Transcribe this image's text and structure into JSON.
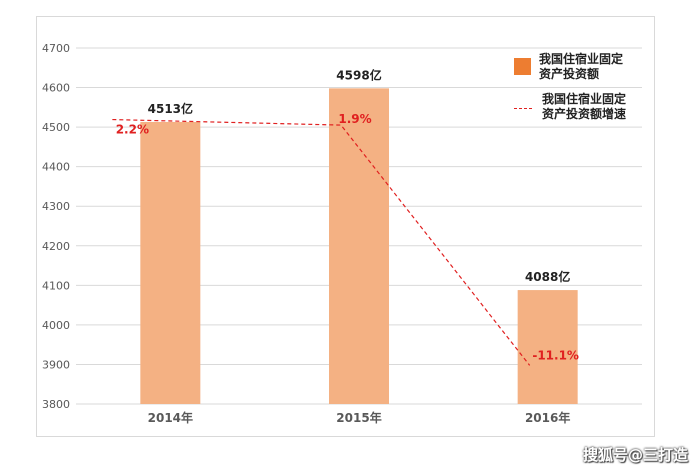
{
  "chart_data": {
    "type": "bar",
    "categories": [
      "2014年",
      "2015年",
      "2016年"
    ],
    "series": [
      {
        "name": "我国住宿业固定资产投资额",
        "kind": "bar",
        "values": [
          4513,
          4598,
          4088
        ],
        "data_labels": [
          "4513亿",
          "4598亿",
          "4088亿"
        ],
        "color": "#f4b183"
      },
      {
        "name": "我国住宿业固定资产投资额增速",
        "kind": "line",
        "style": "dashed",
        "values": [
          2.2,
          1.9,
          -11.1
        ],
        "data_labels": [
          "2.2%",
          "1.9%",
          "-11.1%"
        ],
        "color": "#e02020"
      }
    ],
    "y_ticks": [
      "3800",
      "3900",
      "4000",
      "4100",
      "4200",
      "4300",
      "4400",
      "4500",
      "4600",
      "4700"
    ],
    "ylim": [
      3800,
      4700
    ],
    "grid": true,
    "legend_position": "top-right",
    "legend_swatch_color": "#ed7d31"
  },
  "watermark": "搜狐号@三打造"
}
